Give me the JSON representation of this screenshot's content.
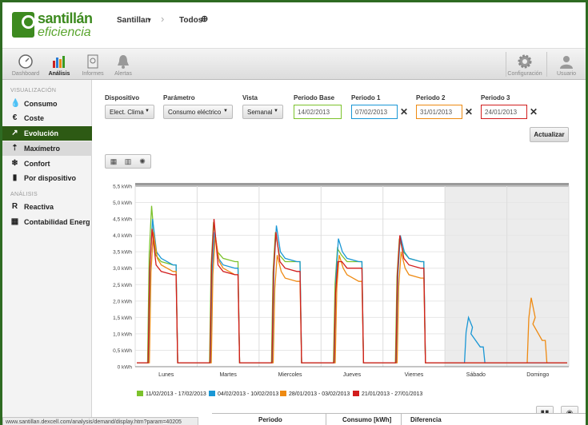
{
  "brand": {
    "name": "santillán",
    "sub": "eficiencia"
  },
  "breadcrumb": {
    "item1": "Santillan",
    "item2": "Todos"
  },
  "toolbar": {
    "dashboard": "Dashboard",
    "analisis": "Análisis",
    "informes": "Informes",
    "alertas": "Alertas",
    "configuracion": "Configuración",
    "usuario": "Usuario"
  },
  "sidebar": {
    "sec1": "VISUALIZACIÓN",
    "sec2": "ANÁLISIS",
    "items": [
      "Consumo",
      "Coste",
      "Evolución",
      "Maxímetro",
      "Confort",
      "Por dispositivo",
      "Reactiva",
      "Contabilidad Energética"
    ]
  },
  "form": {
    "dispositivo_label": "Dispositivo",
    "dispositivo_value": "Elect. Clima",
    "parametro_label": "Parámetro",
    "parametro_value": "Consumo eléctrico",
    "vista_label": "Vista",
    "vista_value": "Semanal",
    "base_label": "Periodo Base",
    "base_value": "14/02/2013",
    "p1_label": "Periodo 1",
    "p1_value": "07/02/2013",
    "p2_label": "Periodo 2",
    "p2_value": "31/01/2013",
    "p3_label": "Periodo 3",
    "p3_value": "24/01/2013",
    "update": "Actualizar"
  },
  "colors": {
    "green": "#7cc22c",
    "blue": "#1a97d5",
    "orange": "#ee8a12",
    "red": "#d21d1d"
  },
  "chart_data": {
    "type": "line",
    "ylim": [
      0,
      5.5
    ],
    "yticks": [
      "0 kWh",
      "0,5 kWh",
      "1,0 kWh",
      "1,5 kWh",
      "2,0 kWh",
      "2,5 kWh",
      "3,0 kWh",
      "3,5 kWh",
      "4,0 kWh",
      "4,5 kWh",
      "5,0 kWh",
      "5,5 kWh"
    ],
    "categories": [
      "Lunes",
      "Martes",
      "Miercoles",
      "Jueves",
      "Viernes",
      "Sábado",
      "Domingo"
    ],
    "legend_position": "bottom",
    "series": [
      {
        "name": "11/02/2013 - 17/02/2013",
        "color": "#7cc22c",
        "days": [
          [
            4.9,
            3.2,
            3.1
          ],
          [
            4.4,
            3.3,
            3.2
          ],
          [
            4.1,
            3.2,
            3.2
          ],
          [
            3.6,
            3.2,
            3.2
          ],
          [
            3.9,
            3.3,
            3.2
          ],
          null,
          null
        ]
      },
      {
        "name": "04/02/2013 - 10/02/2013",
        "color": "#1a97d5",
        "days": [
          [
            4.5,
            3.3,
            3.1
          ],
          [
            4.1,
            3.1,
            3.0
          ],
          [
            4.3,
            3.3,
            3.2
          ],
          [
            3.9,
            3.3,
            3.2
          ],
          [
            4.0,
            3.3,
            3.2
          ],
          [
            1.5,
            1.0,
            0.6
          ],
          null
        ]
      },
      {
        "name": "28/01/2013 - 03/02/2013",
        "color": "#ee8a12",
        "days": [
          [
            4.1,
            3.1,
            2.9
          ],
          [
            4.0,
            3.0,
            2.8
          ],
          [
            3.4,
            2.7,
            2.6
          ],
          [
            3.4,
            2.8,
            2.6
          ],
          [
            3.5,
            2.8,
            2.7
          ],
          null,
          [
            2.1,
            1.3,
            0.8
          ]
        ]
      },
      {
        "name": "21/01/2013 - 27/01/2013",
        "color": "#d21d1d",
        "days": [
          [
            4.2,
            2.9,
            2.8
          ],
          [
            4.5,
            2.9,
            2.8
          ],
          [
            4.1,
            3.0,
            2.9
          ],
          [
            3.2,
            3.0,
            3.0
          ],
          [
            4.0,
            3.1,
            3.0
          ],
          null,
          null
        ]
      }
    ]
  },
  "table": {
    "col1": "Periodo",
    "col2": "Consumo [kWh]",
    "col3": "Diferencia"
  },
  "status_url": "www.santillan.dexcell.com/analysis/demand/display.htm?param=40205"
}
